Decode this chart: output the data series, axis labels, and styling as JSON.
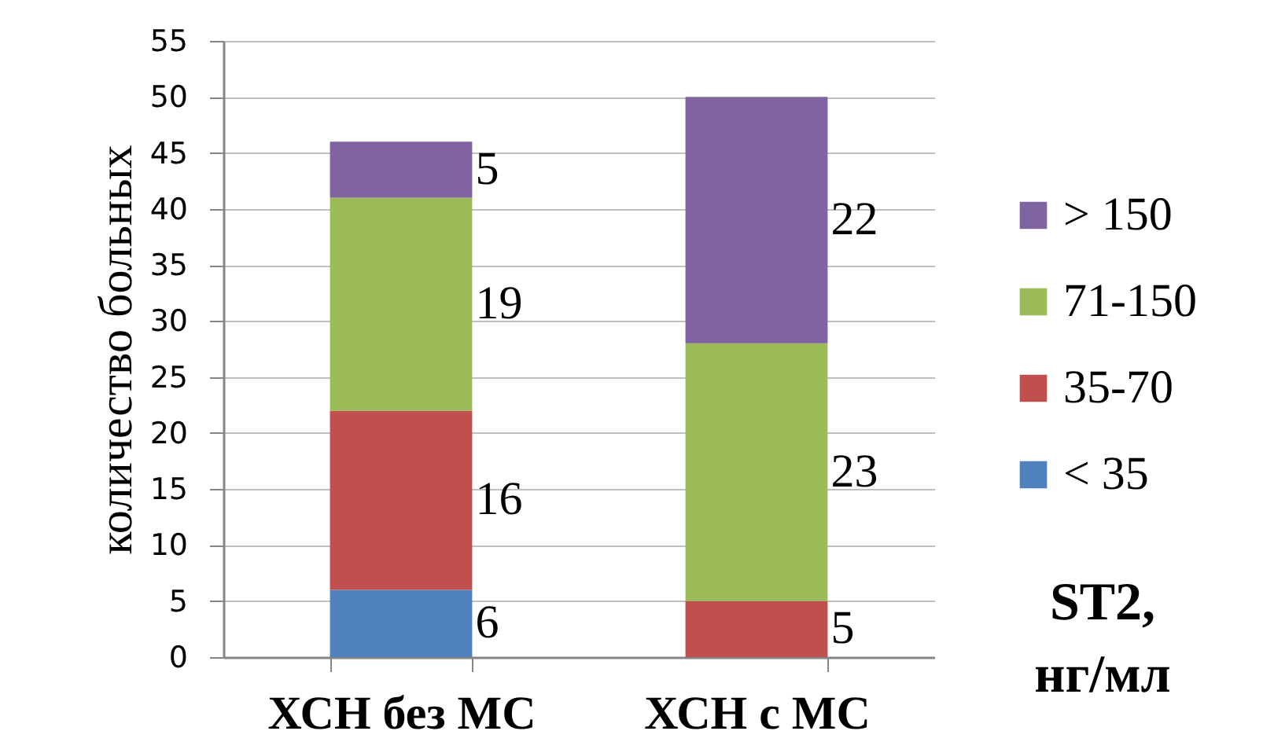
{
  "chart_data": {
    "type": "bar",
    "stacked": true,
    "categories": [
      "ХСН без МС",
      "ХСН с МС"
    ],
    "ylabel": "количество больных",
    "legend_title": "ST2, нг/мл",
    "series": [
      {
        "name": "< 35",
        "color": "#4f81bd",
        "values": [
          6,
          null
        ]
      },
      {
        "name": "35-70",
        "color": "#c0504d",
        "values": [
          16,
          5
        ]
      },
      {
        "name": "71-150",
        "color": "#9bbb59",
        "values": [
          19,
          23
        ]
      },
      {
        "name": "> 150",
        "color": "#8064a2",
        "values": [
          5,
          22
        ]
      }
    ],
    "ylim": [
      0,
      55
    ],
    "yticks": [
      0,
      5,
      10,
      15,
      20,
      25,
      30,
      35,
      40,
      45,
      50,
      55
    ],
    "grid": "y",
    "legend": "right",
    "data_labels": true
  }
}
